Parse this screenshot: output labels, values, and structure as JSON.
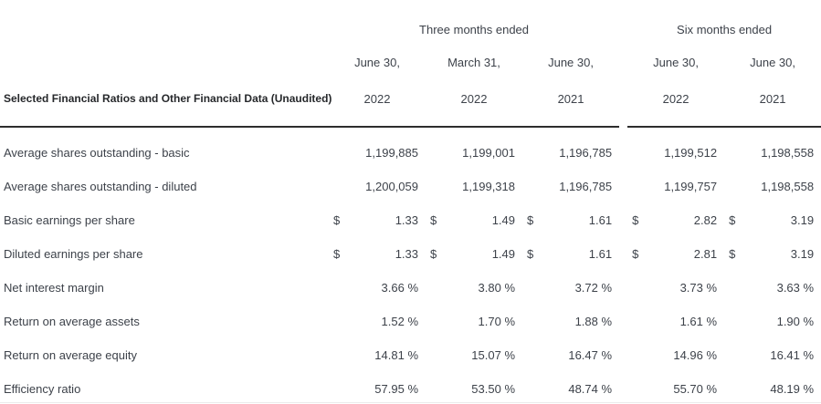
{
  "table": {
    "title": "Selected Financial Ratios and Other Financial Data (Unaudited)",
    "col_groups": [
      {
        "label": "Three months ended",
        "span": 3
      },
      {
        "label": "Six months ended",
        "span": 2
      }
    ],
    "columns": [
      {
        "date": "June 30,",
        "year": "2022"
      },
      {
        "date": "March 31,",
        "year": "2022"
      },
      {
        "date": "June 30,",
        "year": "2021"
      },
      {
        "date": "June 30,",
        "year": "2022"
      },
      {
        "date": "June 30,",
        "year": "2021"
      }
    ],
    "rows": [
      {
        "label": "Average shares outstanding - basic",
        "prefix": "",
        "suffix": "",
        "values": [
          "1,199,885",
          "1,199,001",
          "1,196,785",
          "1,199,512",
          "1,198,558"
        ]
      },
      {
        "label": "Average shares outstanding - diluted",
        "prefix": "",
        "suffix": "",
        "values": [
          "1,200,059",
          "1,199,318",
          "1,196,785",
          "1,199,757",
          "1,198,558"
        ]
      },
      {
        "label": "Basic earnings per share",
        "prefix": "$",
        "suffix": "",
        "values": [
          "1.33",
          "1.49",
          "1.61",
          "2.82",
          "3.19"
        ]
      },
      {
        "label": "Diluted earnings per share",
        "prefix": "$",
        "suffix": "",
        "values": [
          "1.33",
          "1.49",
          "1.61",
          "2.81",
          "3.19"
        ]
      },
      {
        "label": "Net interest margin",
        "prefix": "",
        "suffix": " %",
        "values": [
          "3.66",
          "3.80",
          "3.72",
          "3.73",
          "3.63"
        ]
      },
      {
        "label": "Return on average assets",
        "prefix": "",
        "suffix": " %",
        "values": [
          "1.52",
          "1.70",
          "1.88",
          "1.61",
          "1.90"
        ]
      },
      {
        "label": "Return on average equity",
        "prefix": "",
        "suffix": " %",
        "values": [
          "14.81",
          "15.07",
          "16.47",
          "14.96",
          "16.41"
        ]
      },
      {
        "label": "Efficiency ratio",
        "prefix": "",
        "suffix": " %",
        "values": [
          "57.95",
          "53.50",
          "48.74",
          "55.70",
          "48.19"
        ]
      }
    ],
    "colors": {
      "text": "#3d424a",
      "heading": "#26282b",
      "header_rule": "#2d2d2d",
      "bottom_rule": "#ececec"
    }
  }
}
